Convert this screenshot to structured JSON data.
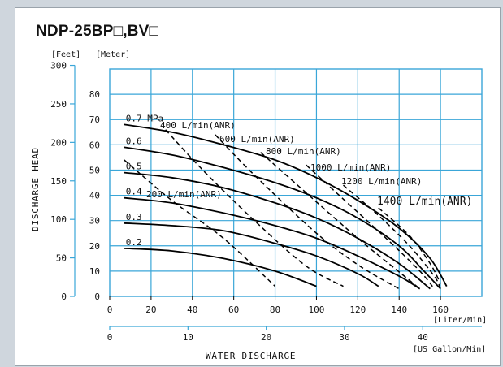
{
  "page": {
    "title": "NDP-25BP□,BV□",
    "unit_feet": "[Feet]",
    "unit_meter": "[Meter]",
    "y_axis_title": "DISCHARGE  HEAD",
    "x_axis_title": "WATER  DISCHARGE",
    "x_unit_liter": "[Liter/Min]",
    "x_unit_gallon": "[US Gallon/Min]"
  },
  "colors": {
    "grid": "#3aa6d8",
    "curve": "#000000",
    "background": "#ffffff",
    "frame": "#cfd6dd"
  },
  "chart_data": {
    "type": "line",
    "title": "NDP-25BP□,BV□",
    "xlabel": "WATER  DISCHARGE",
    "ylabel": "DISCHARGE  HEAD",
    "grid": true,
    "x_axis": {
      "unit": "[Liter/Min]",
      "range": [
        0,
        180
      ],
      "ticks": [
        0,
        20,
        40,
        60,
        80,
        100,
        120,
        140,
        160
      ]
    },
    "x2_axis": {
      "unit": "[US Gallon/Min]",
      "range": [
        0,
        47.55
      ],
      "ticks": [
        0,
        10,
        20,
        30,
        40
      ]
    },
    "y_axis": {
      "unit": "[Meter]",
      "range": [
        0,
        90
      ],
      "ticks": [
        0,
        10,
        20,
        30,
        40,
        50,
        60,
        70,
        80
      ]
    },
    "y2_axis": {
      "unit": "[Feet]",
      "range": [
        0,
        295.3
      ],
      "ticks": [
        0,
        50,
        100,
        150,
        200,
        250,
        300
      ]
    },
    "pressure_series": [
      {
        "name": "0.7 MPa",
        "label": "0.7 MPa",
        "points": [
          [
            7,
            68
          ],
          [
            30,
            65
          ],
          [
            55,
            60
          ],
          [
            80,
            54
          ],
          [
            100,
            47
          ],
          [
            120,
            38
          ],
          [
            140,
            27
          ],
          [
            155,
            15
          ],
          [
            163,
            4
          ]
        ]
      },
      {
        "name": "0.6",
        "label": "0.6",
        "points": [
          [
            7,
            59
          ],
          [
            30,
            56
          ],
          [
            55,
            51
          ],
          [
            80,
            45
          ],
          [
            100,
            39
          ],
          [
            120,
            31
          ],
          [
            140,
            20
          ],
          [
            152,
            10
          ],
          [
            160,
            3
          ]
        ]
      },
      {
        "name": "0.5",
        "label": "0.5",
        "points": [
          [
            7,
            49
          ],
          [
            30,
            47
          ],
          [
            55,
            43
          ],
          [
            80,
            37
          ],
          [
            100,
            31
          ],
          [
            120,
            23
          ],
          [
            140,
            13
          ],
          [
            155,
            3
          ]
        ]
      },
      {
        "name": "0.4",
        "label": "0.4",
        "points": [
          [
            7,
            39
          ],
          [
            30,
            37
          ],
          [
            55,
            33
          ],
          [
            80,
            28
          ],
          [
            100,
            23
          ],
          [
            120,
            16
          ],
          [
            140,
            8
          ],
          [
            150,
            3
          ]
        ]
      },
      {
        "name": "0.3",
        "label": "0.3",
        "points": [
          [
            7,
            29
          ],
          [
            30,
            28
          ],
          [
            55,
            26
          ],
          [
            80,
            21
          ],
          [
            100,
            16
          ],
          [
            120,
            9
          ],
          [
            130,
            4
          ]
        ]
      },
      {
        "name": "0.2",
        "label": "0.2",
        "points": [
          [
            7,
            19
          ],
          [
            30,
            18
          ],
          [
            55,
            15
          ],
          [
            80,
            10
          ],
          [
            100,
            4
          ]
        ]
      }
    ],
    "air_consumption_series": [
      {
        "name": "200 L/min(ANR)",
        "label": "200 L/min(ANR)",
        "points": [
          [
            7,
            54
          ],
          [
            30,
            38
          ],
          [
            55,
            23
          ],
          [
            80,
            4
          ]
        ]
      },
      {
        "name": "400 L/min(ANR)",
        "label": "400 L/min(ANR)",
        "points": [
          [
            27,
            66
          ],
          [
            45,
            50
          ],
          [
            70,
            30
          ],
          [
            95,
            12
          ],
          [
            113,
            4
          ]
        ]
      },
      {
        "name": "600 L/min(ANR)",
        "label": "600 L/min(ANR)",
        "points": [
          [
            51,
            64
          ],
          [
            70,
            48
          ],
          [
            100,
            25
          ],
          [
            121,
            12
          ],
          [
            140,
            3
          ]
        ]
      },
      {
        "name": "800 L/min(ANR)",
        "label": "800 L/min(ANR)",
        "points": [
          [
            73,
            57
          ],
          [
            95,
            41
          ],
          [
            120,
            23
          ],
          [
            138,
            11
          ],
          [
            150,
            3
          ]
        ]
      },
      {
        "name": "1000 L/min(ANR)",
        "label": "1000 L/min(ANR)",
        "points": [
          [
            95,
            52
          ],
          [
            115,
            37
          ],
          [
            135,
            22
          ],
          [
            150,
            10
          ],
          [
            157,
            3
          ]
        ]
      },
      {
        "name": "1200 L/min(ANR)",
        "label": "1200 L/min(ANR)",
        "points": [
          [
            113,
            44
          ],
          [
            130,
            32
          ],
          [
            145,
            20
          ],
          [
            157,
            8
          ],
          [
            160,
            3
          ]
        ]
      },
      {
        "name": "1400 L/min(ANR)",
        "label": "1400 L/min(ANR)",
        "points": [
          [
            130,
            35
          ],
          [
            145,
            24
          ],
          [
            155,
            13
          ],
          [
            160,
            5
          ]
        ]
      }
    ]
  }
}
